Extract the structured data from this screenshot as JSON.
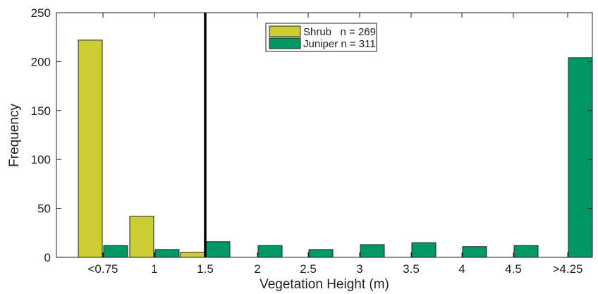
{
  "chart_data": {
    "type": "bar",
    "xlabel": "Vegetation Height (m)",
    "ylabel": "Frequency",
    "ylim": [
      0,
      250
    ],
    "yticks": [
      0,
      50,
      100,
      150,
      200,
      250
    ],
    "categories": [
      "<0.75",
      "1",
      "1.5",
      "2",
      "2.5",
      "3",
      "3.5",
      "4",
      "4.5",
      ">4.25"
    ],
    "series": [
      {
        "name": "Shrub   n = 269",
        "color": "#cccc33",
        "values": [
          222,
          42,
          5,
          0,
          0,
          0,
          0,
          0,
          0,
          0
        ]
      },
      {
        "name": "Juniper n = 311",
        "color": "#009966",
        "values": [
          12,
          8,
          16,
          12,
          8,
          13,
          15,
          11,
          12,
          204
        ]
      }
    ],
    "reference_line": {
      "x": "1.5",
      "color": "#000000"
    },
    "legend_position": "top-center",
    "grid": false
  }
}
